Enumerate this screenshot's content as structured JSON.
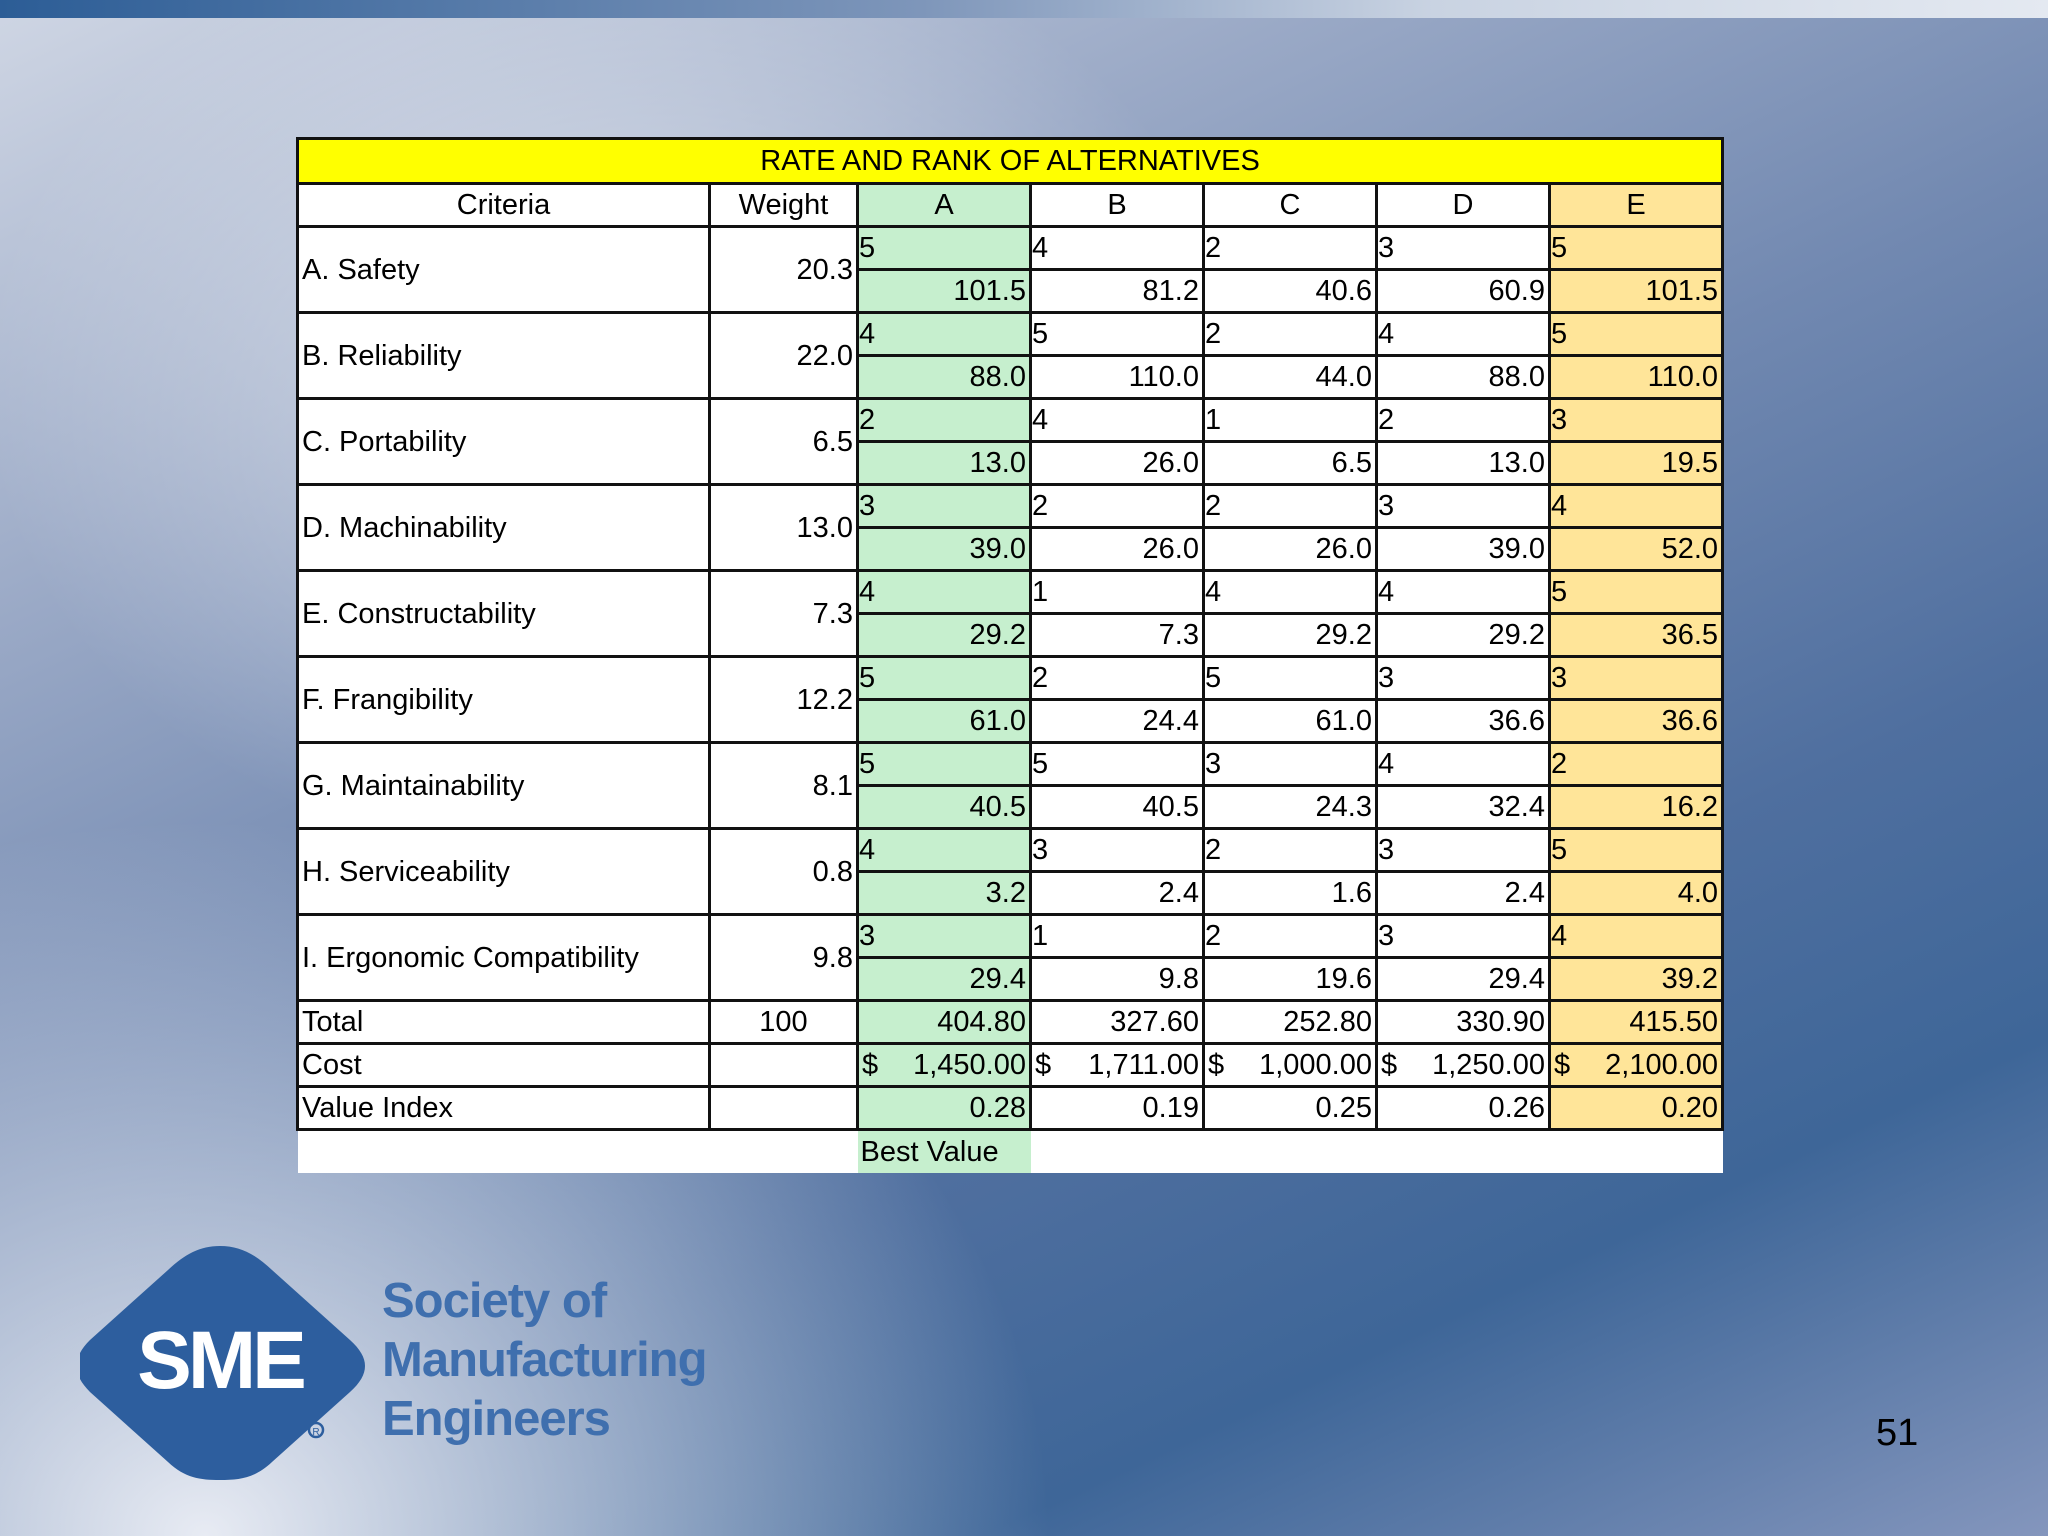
{
  "table": {
    "title": "RATE AND RANK OF ALTERNATIVES",
    "headers": {
      "criteria": "Criteria",
      "weight": "Weight",
      "alternatives": [
        "A",
        "B",
        "C",
        "D",
        "E"
      ]
    },
    "rows": [
      {
        "criterion": "A.  Safety",
        "weight": "20.3",
        "ratings": [
          "5",
          "4",
          "2",
          "3",
          "5"
        ],
        "scores": [
          "101.5",
          "81.2",
          "40.6",
          "60.9",
          "101.5"
        ]
      },
      {
        "criterion": "B.  Reliability",
        "weight": "22.0",
        "ratings": [
          "4",
          "5",
          "2",
          "4",
          "5"
        ],
        "scores": [
          "88.0",
          "110.0",
          "44.0",
          "88.0",
          "110.0"
        ]
      },
      {
        "criterion": "C.  Portability",
        "weight": "6.5",
        "ratings": [
          "2",
          "4",
          "1",
          "2",
          "3"
        ],
        "scores": [
          "13.0",
          "26.0",
          "6.5",
          "13.0",
          "19.5"
        ]
      },
      {
        "criterion": "D.  Machinability",
        "weight": "13.0",
        "ratings": [
          "3",
          "2",
          "2",
          "3",
          "4"
        ],
        "scores": [
          "39.0",
          "26.0",
          "26.0",
          "39.0",
          "52.0"
        ]
      },
      {
        "criterion": "E.  Constructability",
        "weight": "7.3",
        "ratings": [
          "4",
          "1",
          "4",
          "4",
          "5"
        ],
        "scores": [
          "29.2",
          "7.3",
          "29.2",
          "29.2",
          "36.5"
        ]
      },
      {
        "criterion": "F.  Frangibility",
        "weight": "12.2",
        "ratings": [
          "5",
          "2",
          "5",
          "3",
          "3"
        ],
        "scores": [
          "61.0",
          "24.4",
          "61.0",
          "36.6",
          "36.6"
        ]
      },
      {
        "criterion": "G.  Maintainability",
        "weight": "8.1",
        "ratings": [
          "5",
          "5",
          "3",
          "4",
          "2"
        ],
        "scores": [
          "40.5",
          "40.5",
          "24.3",
          "32.4",
          "16.2"
        ]
      },
      {
        "criterion": "H.  Serviceability",
        "weight": "0.8",
        "ratings": [
          "4",
          "3",
          "2",
          "3",
          "5"
        ],
        "scores": [
          "3.2",
          "2.4",
          "1.6",
          "2.4",
          "4.0"
        ]
      },
      {
        "criterion": "I.  Ergonomic Compatibility",
        "weight": "9.8",
        "ratings": [
          "3",
          "1",
          "2",
          "3",
          "4"
        ],
        "scores": [
          "29.4",
          "9.8",
          "19.6",
          "29.4",
          "39.2"
        ]
      }
    ],
    "total": {
      "label": "Total",
      "weight": "100",
      "values": [
        "404.80",
        "327.60",
        "252.80",
        "330.90",
        "415.50"
      ]
    },
    "cost": {
      "label": "Cost",
      "currency": "$",
      "values": [
        "1,450.00",
        "1,711.00",
        "1,000.00",
        "1,250.00",
        "2,100.00"
      ]
    },
    "value_index": {
      "label": "Value Index",
      "values": [
        "0.28",
        "0.19",
        "0.25",
        "0.26",
        "0.20"
      ]
    },
    "best_value_label": "Best Value"
  },
  "logo": {
    "mark_text": "SME",
    "lines": [
      "Society of",
      "Manufacturing",
      "Engineers"
    ]
  },
  "slide_number": "51",
  "colors": {
    "title_fill": "#ffff00",
    "column_a_fill": "#c6efce",
    "column_e_fill": "#ffe599",
    "logo_blue": "#2d5e9e"
  }
}
